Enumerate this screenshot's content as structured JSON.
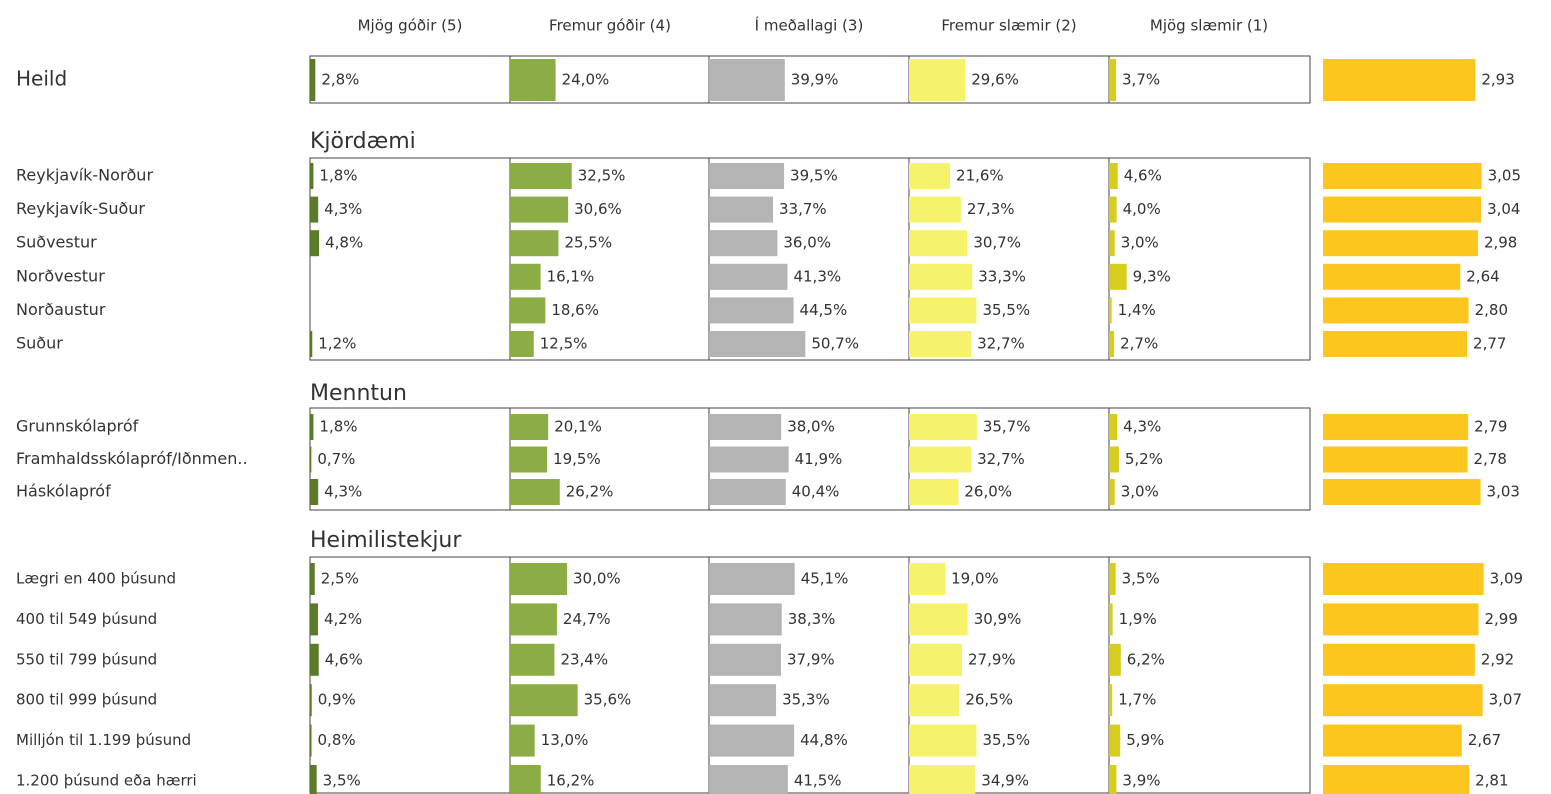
{
  "chart_data": {
    "type": "bar",
    "series": [
      {
        "name": "Mjög góðir (5)",
        "color": "#5b7b2b"
      },
      {
        "name": "Fremur góðir (4)",
        "color": "#8cad46"
      },
      {
        "name": "Í meðallagi (3)",
        "color": "#b4b4b4"
      },
      {
        "name": "Fremur slæmir (2)",
        "color": "#f6f26c"
      },
      {
        "name": "Mjög slæmir (1)",
        "color": "#d6cd1c"
      }
    ],
    "mean_color": "#fdc61e",
    "groups": [
      {
        "categories": [
          "Heild"
        ],
        "values": [
          [
            2.8,
            24.0,
            39.9,
            29.6,
            3.7
          ]
        ],
        "value_labels": [
          [
            "2,8%",
            "24,0%",
            "39,9%",
            "29,6%",
            "3,7%"
          ]
        ],
        "means": [
          2.93
        ],
        "mean_labels": [
          "2,93"
        ]
      },
      {
        "title": "Kjördæmi",
        "categories": [
          "Reykjavík-Norður",
          "Reykjavík-Suður",
          "Suðvestur",
          "Norðvestur",
          "Norðaustur",
          "Suður"
        ],
        "values": [
          [
            1.8,
            32.5,
            39.5,
            21.6,
            4.6
          ],
          [
            4.3,
            30.6,
            33.7,
            27.3,
            4.0
          ],
          [
            4.8,
            25.5,
            36.0,
            30.7,
            3.0
          ],
          [
            null,
            16.1,
            41.3,
            33.3,
            9.3
          ],
          [
            null,
            18.6,
            44.5,
            35.5,
            1.4
          ],
          [
            1.2,
            12.5,
            50.7,
            32.7,
            2.7
          ]
        ],
        "value_labels": [
          [
            "1,8%",
            "32,5%",
            "39,5%",
            "21,6%",
            "4,6%"
          ],
          [
            "4,3%",
            "30,6%",
            "33,7%",
            "27,3%",
            "4,0%"
          ],
          [
            "4,8%",
            "25,5%",
            "36,0%",
            "30,7%",
            "3,0%"
          ],
          [
            null,
            "16,1%",
            "41,3%",
            "33,3%",
            "9,3%"
          ],
          [
            null,
            "18,6%",
            "44,5%",
            "35,5%",
            "1,4%"
          ],
          [
            "1,2%",
            "12,5%",
            "50,7%",
            "32,7%",
            "2,7%"
          ]
        ],
        "means": [
          3.05,
          3.04,
          2.98,
          2.64,
          2.8,
          2.77
        ],
        "mean_labels": [
          "3,05",
          "3,04",
          "2,98",
          "2,64",
          "2,80",
          "2,77"
        ]
      },
      {
        "title": "Menntun",
        "categories": [
          "Grunnskólapróf",
          "Framhaldsskólapróf/Iðnmen..",
          "Háskólapróf"
        ],
        "values": [
          [
            1.8,
            20.1,
            38.0,
            35.7,
            4.3
          ],
          [
            0.7,
            19.5,
            41.9,
            32.7,
            5.2
          ],
          [
            4.3,
            26.2,
            40.4,
            26.0,
            3.0
          ]
        ],
        "value_labels": [
          [
            "1,8%",
            "20,1%",
            "38,0%",
            "35,7%",
            "4,3%"
          ],
          [
            "0,7%",
            "19,5%",
            "41,9%",
            "32,7%",
            "5,2%"
          ],
          [
            "4,3%",
            "26,2%",
            "40,4%",
            "26,0%",
            "3,0%"
          ]
        ],
        "means": [
          2.79,
          2.78,
          3.03
        ],
        "mean_labels": [
          "2,79",
          "2,78",
          "3,03"
        ]
      },
      {
        "title": "Heimilistekjur",
        "categories": [
          "Lægri en 400 þúsund",
          "400 til 549 þúsund",
          "550 til 799 þúsund",
          "800 til 999 þúsund",
          "Milljón til 1.199 þúsund",
          "1.200 þúsund eða hærri"
        ],
        "values": [
          [
            2.5,
            30.0,
            45.1,
            19.0,
            3.5
          ],
          [
            4.2,
            24.7,
            38.3,
            30.9,
            1.9
          ],
          [
            4.6,
            23.4,
            37.9,
            27.9,
            6.2
          ],
          [
            0.9,
            35.6,
            35.3,
            26.5,
            1.7
          ],
          [
            0.8,
            13.0,
            44.8,
            35.5,
            5.9
          ],
          [
            3.5,
            16.2,
            41.5,
            34.9,
            3.9
          ]
        ],
        "value_labels": [
          [
            "2,5%",
            "30,0%",
            "45,1%",
            "19,0%",
            "3,5%"
          ],
          [
            "4,2%",
            "24,7%",
            "38,3%",
            "30,9%",
            "1,9%"
          ],
          [
            "4,6%",
            "23,4%",
            "37,9%",
            "27,9%",
            "6,2%"
          ],
          [
            "0,9%",
            "35,6%",
            "35,3%",
            "26,5%",
            "1,7%"
          ],
          [
            "0,8%",
            "13,0%",
            "44,8%",
            "35,5%",
            "5,9%"
          ],
          [
            "3,5%",
            "16,2%",
            "41,5%",
            "34,9%",
            "3,9%"
          ]
        ],
        "means": [
          3.09,
          2.99,
          2.92,
          3.07,
          2.67,
          2.81
        ],
        "mean_labels": [
          "3,09",
          "2,99",
          "2,92",
          "3,07",
          "2,67",
          "2,81"
        ]
      }
    ]
  }
}
